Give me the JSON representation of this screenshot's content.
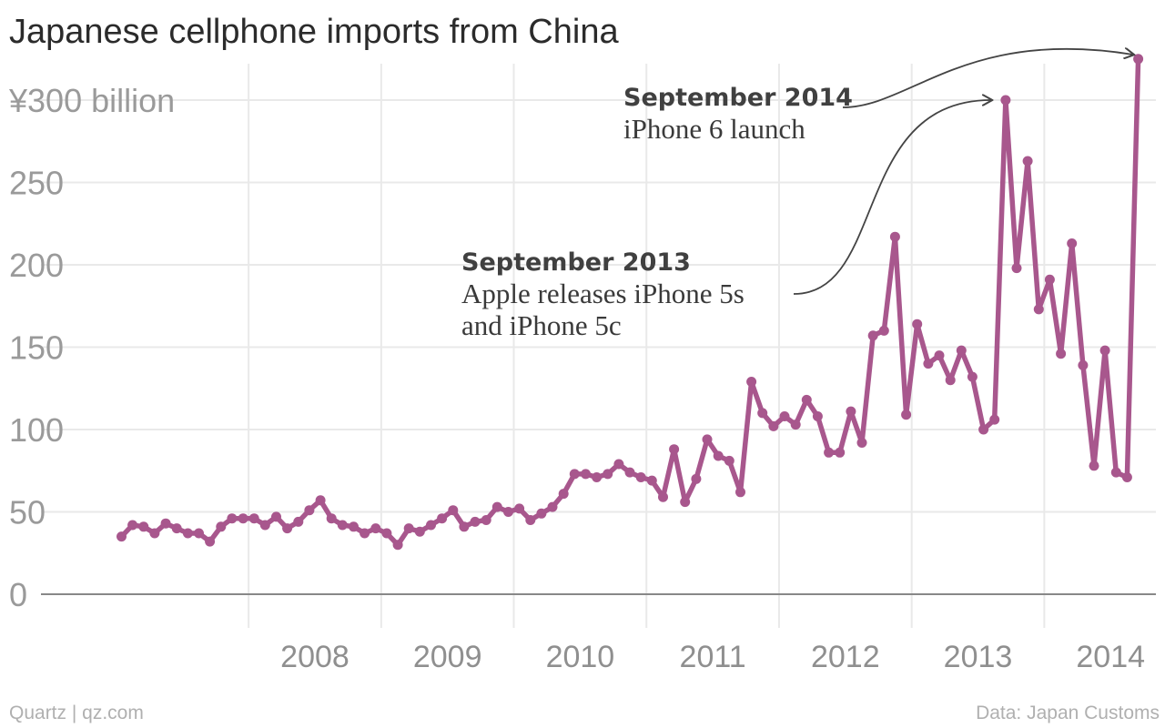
{
  "title": "Japanese cellphone imports from China",
  "footer": {
    "left": "Quartz | qz.com",
    "right": "Data: Japan Customs"
  },
  "colors": {
    "line": "#a8578d",
    "grid": "#e9e9e9",
    "axis": "#888888",
    "tick_text": "#9a9a9a"
  },
  "chart_data": {
    "type": "line",
    "title": "Japanese cellphone imports from China",
    "x_start": "2007-01",
    "x_interval": "month",
    "ylim": [
      0,
      300
    ],
    "y_ticks": [
      0,
      50,
      100,
      150,
      200,
      250,
      300
    ],
    "y_tick_labels": [
      "0",
      "50",
      "100",
      "150",
      "200",
      "250",
      "¥300 billion"
    ],
    "x_tick_labels": [
      "2008",
      "2009",
      "2010",
      "2011",
      "2012",
      "2013",
      "2014"
    ],
    "grid": true,
    "series": [
      {
        "values": [
          35,
          42,
          41,
          37,
          43,
          40,
          37,
          37,
          32,
          41,
          46,
          46,
          46,
          42,
          47,
          40,
          44,
          51,
          57,
          46,
          42,
          41,
          37,
          40,
          37,
          30,
          40,
          38,
          42,
          46,
          51,
          41,
          44,
          45,
          53,
          50,
          52,
          45,
          49,
          53,
          61,
          73,
          73,
          71,
          73,
          79,
          74,
          71,
          69,
          59,
          88,
          56,
          70,
          94,
          84,
          81,
          62,
          129,
          110,
          102,
          108,
          103,
          118,
          108,
          86,
          86,
          111,
          92,
          157,
          160,
          217,
          109,
          164,
          140,
          145,
          130,
          148,
          132,
          100,
          106,
          300,
          198,
          263,
          173,
          191,
          146,
          213,
          139,
          78,
          148,
          74,
          71,
          325
        ]
      }
    ],
    "annotations": [
      {
        "heading": "September 2013",
        "lines": [
          "Apple releases iPhone 5s",
          "and iPhone 5c"
        ],
        "x": "2013-09",
        "y": 300
      },
      {
        "heading": "September 2014",
        "lines": [
          "iPhone 6 launch"
        ],
        "x": "2014-09",
        "y": 325
      }
    ]
  }
}
